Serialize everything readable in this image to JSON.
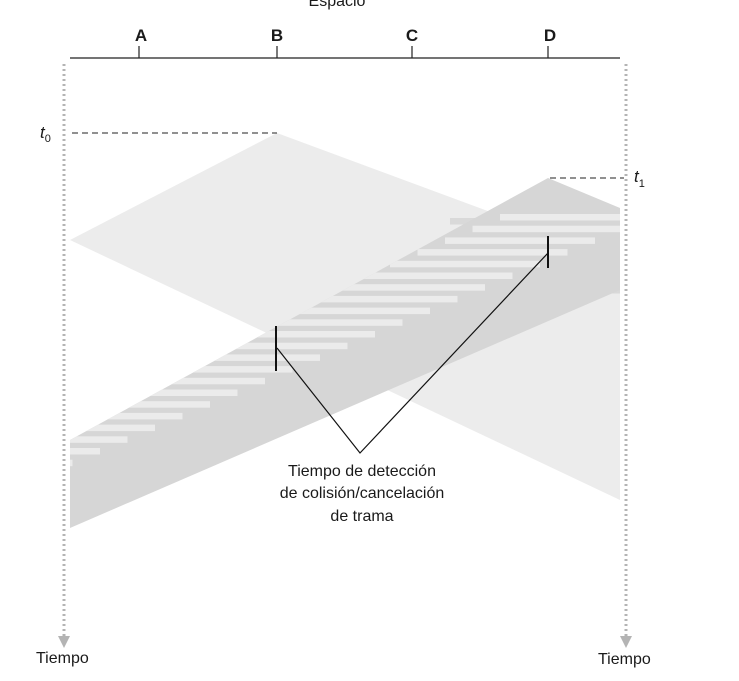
{
  "diagram": {
    "top_label": "Espacio",
    "nodes": [
      {
        "id": "A",
        "label": "A"
      },
      {
        "id": "B",
        "label": "B"
      },
      {
        "id": "C",
        "label": "C"
      },
      {
        "id": "D",
        "label": "D"
      }
    ],
    "time_axes": [
      {
        "label": "Tiempo"
      },
      {
        "label": "Tiempo"
      }
    ],
    "t0": {
      "label": "t",
      "sub": "0"
    },
    "t1": {
      "label": "t",
      "sub": "1"
    },
    "annotation": {
      "lines": [
        "Tiempo de detección",
        "de colisión/cancelación",
        "de trama"
      ]
    },
    "colors": {
      "axis": "#222222",
      "light_fill": "#ececec",
      "dark_fill": "#d6d6d6",
      "stripe": "#ffffff",
      "time_axis": "#b4b4b4"
    }
  }
}
